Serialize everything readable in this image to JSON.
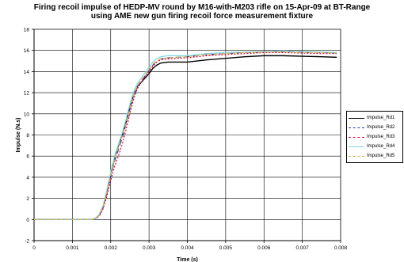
{
  "title_lines": [
    "Firing recoil impulse of HEDP-MV round by M16-with-M203 rifle on 15-Apr-09 at BT-Range",
    "using AME new gun firing recoil force measurement fixture"
  ],
  "chart_data": {
    "type": "line",
    "title": "Firing recoil impulse of HEDP-MV round by M16-with-M203 rifle on 15-Apr-09 at BT-Range using AME new gun firing recoil force measurement fixture",
    "xlabel": "Time (s)",
    "ylabel": "Impulse (N.s)",
    "xlim": [
      0,
      0.008
    ],
    "ylim": [
      -2,
      18
    ],
    "x_ticks": [
      "0",
      "0.001",
      "0.002",
      "0.003",
      "0.004",
      "0.005",
      "0.006",
      "0.007",
      "0.008"
    ],
    "y_ticks": [
      "-2",
      "0",
      "2",
      "4",
      "6",
      "8",
      "10",
      "12",
      "14",
      "16",
      "18"
    ],
    "grid": true,
    "legend_position": "right",
    "series": [
      {
        "name": "Impulse_Rd1",
        "color": "#000000",
        "dash": "",
        "points": [
          [
            0,
            0
          ],
          [
            0.0015,
            0
          ],
          [
            0.0016,
            0.1
          ],
          [
            0.0017,
            0.4
          ],
          [
            0.0018,
            1.2
          ],
          [
            0.0019,
            2.6
          ],
          [
            0.002,
            4.3
          ],
          [
            0.0021,
            5.9
          ],
          [
            0.0022,
            7.0
          ],
          [
            0.0023,
            8.0
          ],
          [
            0.0024,
            9.2
          ],
          [
            0.0025,
            10.6
          ],
          [
            0.0026,
            11.8
          ],
          [
            0.0027,
            12.6
          ],
          [
            0.0028,
            13.0
          ],
          [
            0.0029,
            13.4
          ],
          [
            0.003,
            13.8
          ],
          [
            0.0031,
            14.3
          ],
          [
            0.0032,
            14.6
          ],
          [
            0.0033,
            14.8
          ],
          [
            0.0035,
            14.9
          ],
          [
            0.004,
            14.9
          ],
          [
            0.0045,
            15.1
          ],
          [
            0.005,
            15.25
          ],
          [
            0.0055,
            15.4
          ],
          [
            0.006,
            15.5
          ],
          [
            0.0065,
            15.5
          ],
          [
            0.007,
            15.45
          ],
          [
            0.0075,
            15.4
          ],
          [
            0.0079,
            15.35
          ]
        ]
      },
      {
        "name": "Impulse_Rd2",
        "color": "#1f3fa8",
        "dash": "7,4",
        "points": [
          [
            0,
            0
          ],
          [
            0.0015,
            0
          ],
          [
            0.0016,
            0.1
          ],
          [
            0.0017,
            0.4
          ],
          [
            0.0018,
            1.1
          ],
          [
            0.0019,
            2.5
          ],
          [
            0.002,
            4.1
          ],
          [
            0.0021,
            5.5
          ],
          [
            0.0022,
            6.6
          ],
          [
            0.0023,
            7.7
          ],
          [
            0.0024,
            9.0
          ],
          [
            0.0025,
            10.4
          ],
          [
            0.0026,
            11.7
          ],
          [
            0.0027,
            12.6
          ],
          [
            0.0028,
            13.1
          ],
          [
            0.0029,
            13.6
          ],
          [
            0.003,
            14.1
          ],
          [
            0.0031,
            14.6
          ],
          [
            0.0032,
            15.0
          ],
          [
            0.0033,
            15.2
          ],
          [
            0.0035,
            15.3
          ],
          [
            0.004,
            15.4
          ],
          [
            0.0045,
            15.6
          ],
          [
            0.005,
            15.7
          ],
          [
            0.0055,
            15.8
          ],
          [
            0.006,
            15.85
          ],
          [
            0.0065,
            15.9
          ],
          [
            0.007,
            15.85
          ],
          [
            0.0075,
            15.8
          ],
          [
            0.0079,
            15.75
          ]
        ]
      },
      {
        "name": "Impulse_Rd3",
        "color": "#e0003c",
        "dash": "2,2",
        "points": [
          [
            0,
            0
          ],
          [
            0.0015,
            0
          ],
          [
            0.0016,
            0.1
          ],
          [
            0.0017,
            0.3
          ],
          [
            0.0018,
            1.0
          ],
          [
            0.0019,
            2.2
          ],
          [
            0.002,
            3.7
          ],
          [
            0.0021,
            5.0
          ],
          [
            0.0022,
            6.0
          ],
          [
            0.0023,
            7.1
          ],
          [
            0.0024,
            8.5
          ],
          [
            0.0025,
            10.0
          ],
          [
            0.0026,
            11.4
          ],
          [
            0.0027,
            12.4
          ],
          [
            0.0028,
            13.0
          ],
          [
            0.0029,
            13.5
          ],
          [
            0.003,
            14.0
          ],
          [
            0.0031,
            14.5
          ],
          [
            0.0032,
            14.9
          ],
          [
            0.0033,
            15.1
          ],
          [
            0.0035,
            15.2
          ],
          [
            0.004,
            15.3
          ],
          [
            0.0045,
            15.5
          ],
          [
            0.005,
            15.6
          ],
          [
            0.0055,
            15.7
          ],
          [
            0.006,
            15.8
          ],
          [
            0.0065,
            15.8
          ],
          [
            0.007,
            15.75
          ],
          [
            0.0075,
            15.7
          ],
          [
            0.0079,
            15.7
          ]
        ]
      },
      {
        "name": "Impulse_Rd4",
        "color": "#7fd6e8",
        "dash": "",
        "points": [
          [
            0,
            0
          ],
          [
            0.0015,
            0
          ],
          [
            0.0016,
            0.1
          ],
          [
            0.0017,
            0.5
          ],
          [
            0.0018,
            1.3
          ],
          [
            0.0019,
            2.8
          ],
          [
            0.002,
            4.5
          ],
          [
            0.0021,
            6.0
          ],
          [
            0.0022,
            7.1
          ],
          [
            0.0023,
            8.2
          ],
          [
            0.0024,
            9.5
          ],
          [
            0.0025,
            10.9
          ],
          [
            0.0026,
            12.1
          ],
          [
            0.0027,
            12.9
          ],
          [
            0.0028,
            13.4
          ],
          [
            0.0029,
            13.9
          ],
          [
            0.003,
            14.4
          ],
          [
            0.0031,
            14.9
          ],
          [
            0.0032,
            15.2
          ],
          [
            0.0033,
            15.4
          ],
          [
            0.0035,
            15.5
          ],
          [
            0.004,
            15.5
          ],
          [
            0.0045,
            15.7
          ],
          [
            0.005,
            15.8
          ],
          [
            0.0055,
            15.85
          ],
          [
            0.006,
            15.9
          ],
          [
            0.0065,
            15.95
          ],
          [
            0.007,
            15.9
          ],
          [
            0.0075,
            15.85
          ],
          [
            0.0079,
            15.8
          ]
        ]
      },
      {
        "name": "Impulse_Rd5",
        "color": "#d6b84a",
        "dash": "5,3",
        "points": [
          [
            0,
            0
          ],
          [
            0.0015,
            0
          ],
          [
            0.0016,
            0.1
          ],
          [
            0.0017,
            0.4
          ],
          [
            0.0018,
            1.2
          ],
          [
            0.0019,
            2.6
          ],
          [
            0.002,
            4.2
          ],
          [
            0.0021,
            5.7
          ],
          [
            0.0022,
            6.8
          ],
          [
            0.0023,
            7.9
          ],
          [
            0.0024,
            9.1
          ],
          [
            0.0025,
            10.5
          ],
          [
            0.0026,
            11.8
          ],
          [
            0.0027,
            12.7
          ],
          [
            0.0028,
            13.2
          ],
          [
            0.0029,
            13.7
          ],
          [
            0.003,
            14.2
          ],
          [
            0.0031,
            14.7
          ],
          [
            0.0032,
            15.0
          ],
          [
            0.0033,
            15.2
          ],
          [
            0.0035,
            15.3
          ],
          [
            0.004,
            15.4
          ],
          [
            0.0045,
            15.6
          ],
          [
            0.005,
            15.7
          ],
          [
            0.0055,
            15.8
          ],
          [
            0.006,
            15.85
          ],
          [
            0.0065,
            15.85
          ],
          [
            0.007,
            15.8
          ],
          [
            0.0075,
            15.8
          ],
          [
            0.0079,
            15.75
          ]
        ]
      }
    ]
  }
}
